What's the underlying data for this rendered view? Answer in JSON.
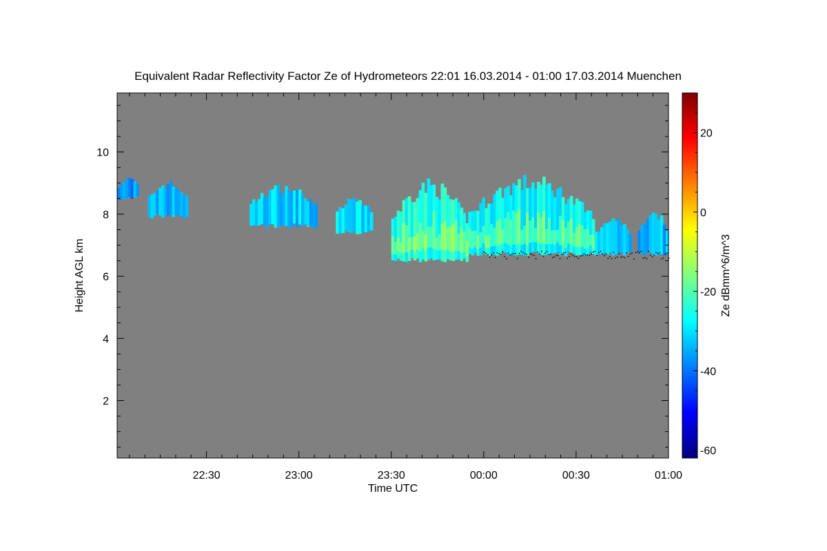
{
  "chart_data": {
    "type": "heatmap",
    "title": "Equivalent Radar Reflectivity Factor Ze of Hydrometeors   22:01 16.03.2014 - 01:00 17.03.2014 Muenchen",
    "xlabel": "Time UTC",
    "ylabel": "Height AGL km",
    "colorbar_label": "Ze dBmm^6/m^3",
    "x_range_minutes": [
      -29,
      150
    ],
    "x_ticks": [
      {
        "minutes": 0,
        "label": "22:30"
      },
      {
        "minutes": 30,
        "label": "23:00"
      },
      {
        "minutes": 60,
        "label": "23:30"
      },
      {
        "minutes": 90,
        "label": "00:00"
      },
      {
        "minutes": 120,
        "label": "00:30"
      },
      {
        "minutes": 150,
        "label": "01:00"
      }
    ],
    "ylim": [
      0.15,
      11.9
    ],
    "y_ticks": [
      2,
      4,
      6,
      8,
      10
    ],
    "colorbar": {
      "range": [
        -62,
        30
      ],
      "ticks": [
        -60,
        -40,
        -20,
        0,
        20
      ],
      "colormap": [
        "#00007f",
        "#0000ff",
        "#0080ff",
        "#00ffff",
        "#80ff80",
        "#ffff00",
        "#ff8000",
        "#ff0000",
        "#7f0000"
      ]
    },
    "background_color": "#808080",
    "echo_segments": [
      {
        "t": [
          -29,
          -22
        ],
        "base_km": 8.6,
        "top_km": 9.2,
        "ze_db": -38
      },
      {
        "t": [
          -19,
          -6
        ],
        "base_km": 8.0,
        "top_km": 9.1,
        "ze_db": -36
      },
      {
        "t": [
          14,
          36
        ],
        "base_km": 7.7,
        "top_km": 9.0,
        "ze_db": -33
      },
      {
        "t": [
          42,
          54
        ],
        "base_km": 7.5,
        "top_km": 8.6,
        "ze_db": -32
      },
      {
        "t": [
          60,
          85
        ],
        "base_km": 6.6,
        "top_km": 9.2,
        "ze_db": -26
      },
      {
        "t": [
          85,
          126
        ],
        "base_km": 6.8,
        "top_km": 9.3,
        "ze_db": -28
      },
      {
        "t": [
          126,
          138
        ],
        "base_km": 6.8,
        "top_km": 8.0,
        "ze_db": -33
      },
      {
        "t": [
          140,
          150
        ],
        "base_km": 6.8,
        "top_km": 8.2,
        "ze_db": -35
      }
    ],
    "cloud_base_dots": {
      "t": [
        90,
        150
      ],
      "height_km": 6.7
    }
  }
}
